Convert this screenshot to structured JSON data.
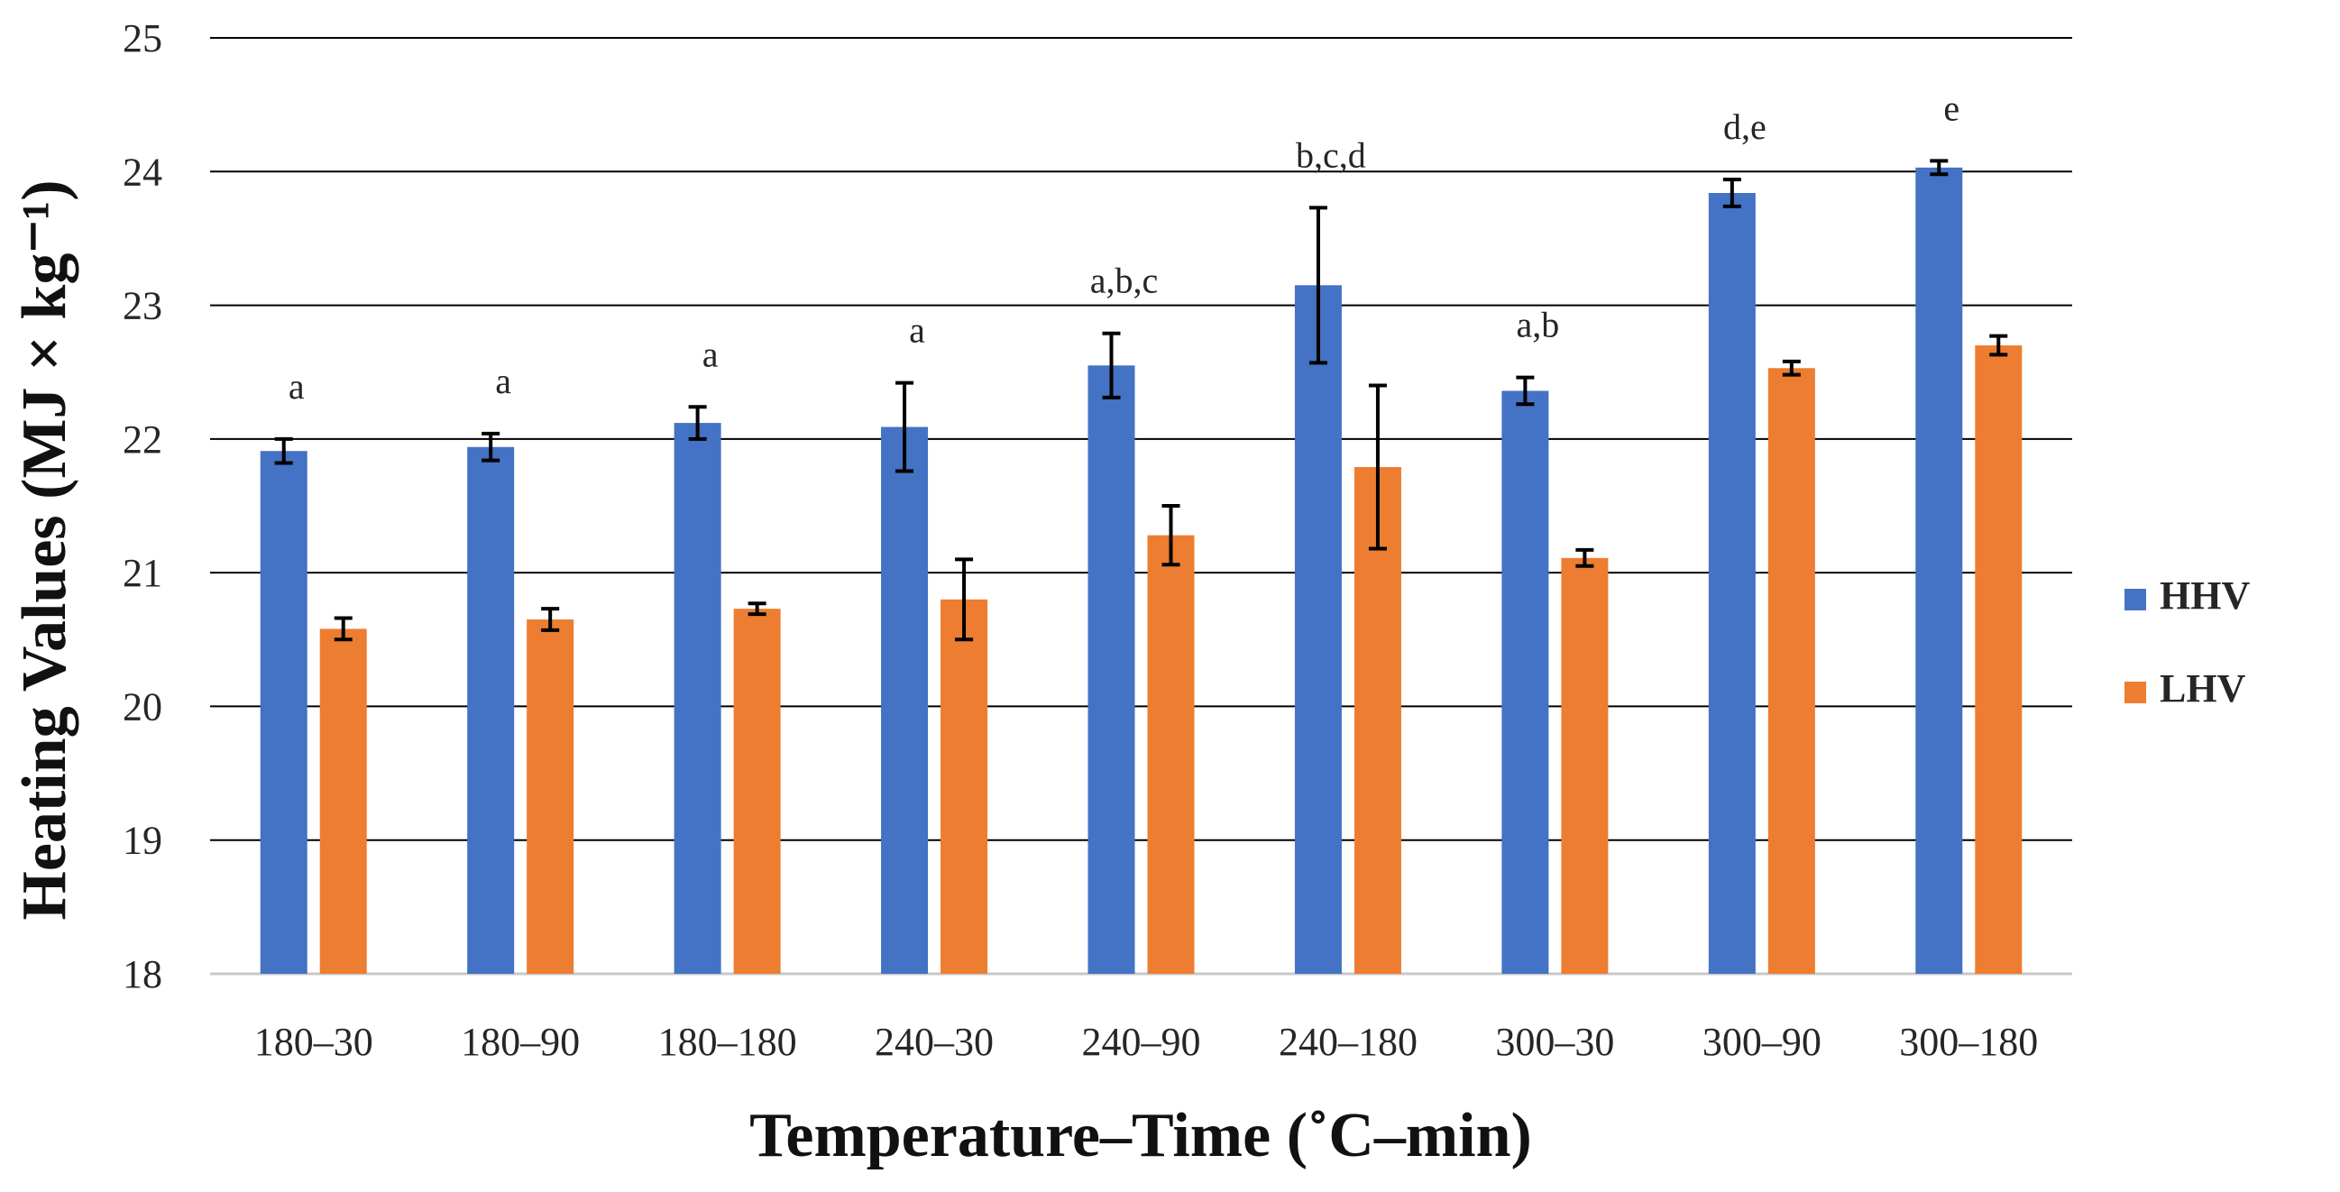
{
  "chart_data": {
    "type": "bar",
    "title": "",
    "xlabel": "Temperature–Time (˚C–min)",
    "ylabel": "Heating Values (MJ × kg⁻¹)",
    "ylim": [
      18,
      25
    ],
    "yticks": [
      18,
      19,
      20,
      21,
      22,
      23,
      24,
      25
    ],
    "grid": true,
    "legend_position": "right",
    "categories": [
      "180–30",
      "180–90",
      "180–180",
      "240–30",
      "240–90",
      "240–180",
      "300–30",
      "300–90",
      "300–180"
    ],
    "series": [
      {
        "name": "HHV",
        "color": "#4472C4",
        "values": [
          21.91,
          21.94,
          22.12,
          22.09,
          22.55,
          23.15,
          22.36,
          23.84,
          24.03
        ],
        "errors": [
          0.09,
          0.1,
          0.12,
          0.33,
          0.24,
          0.58,
          0.1,
          0.1,
          0.05
        ],
        "significance": [
          "a",
          "a",
          "a",
          "a",
          "a,b,c",
          "b,c,d",
          "a,b",
          "d,e",
          "e"
        ]
      },
      {
        "name": "LHV",
        "color": "#ED7D31",
        "values": [
          20.58,
          20.65,
          20.73,
          20.8,
          21.28,
          21.79,
          21.11,
          22.53,
          22.7
        ],
        "errors": [
          0.08,
          0.08,
          0.04,
          0.3,
          0.22,
          0.61,
          0.06,
          0.05,
          0.07
        ]
      }
    ]
  }
}
